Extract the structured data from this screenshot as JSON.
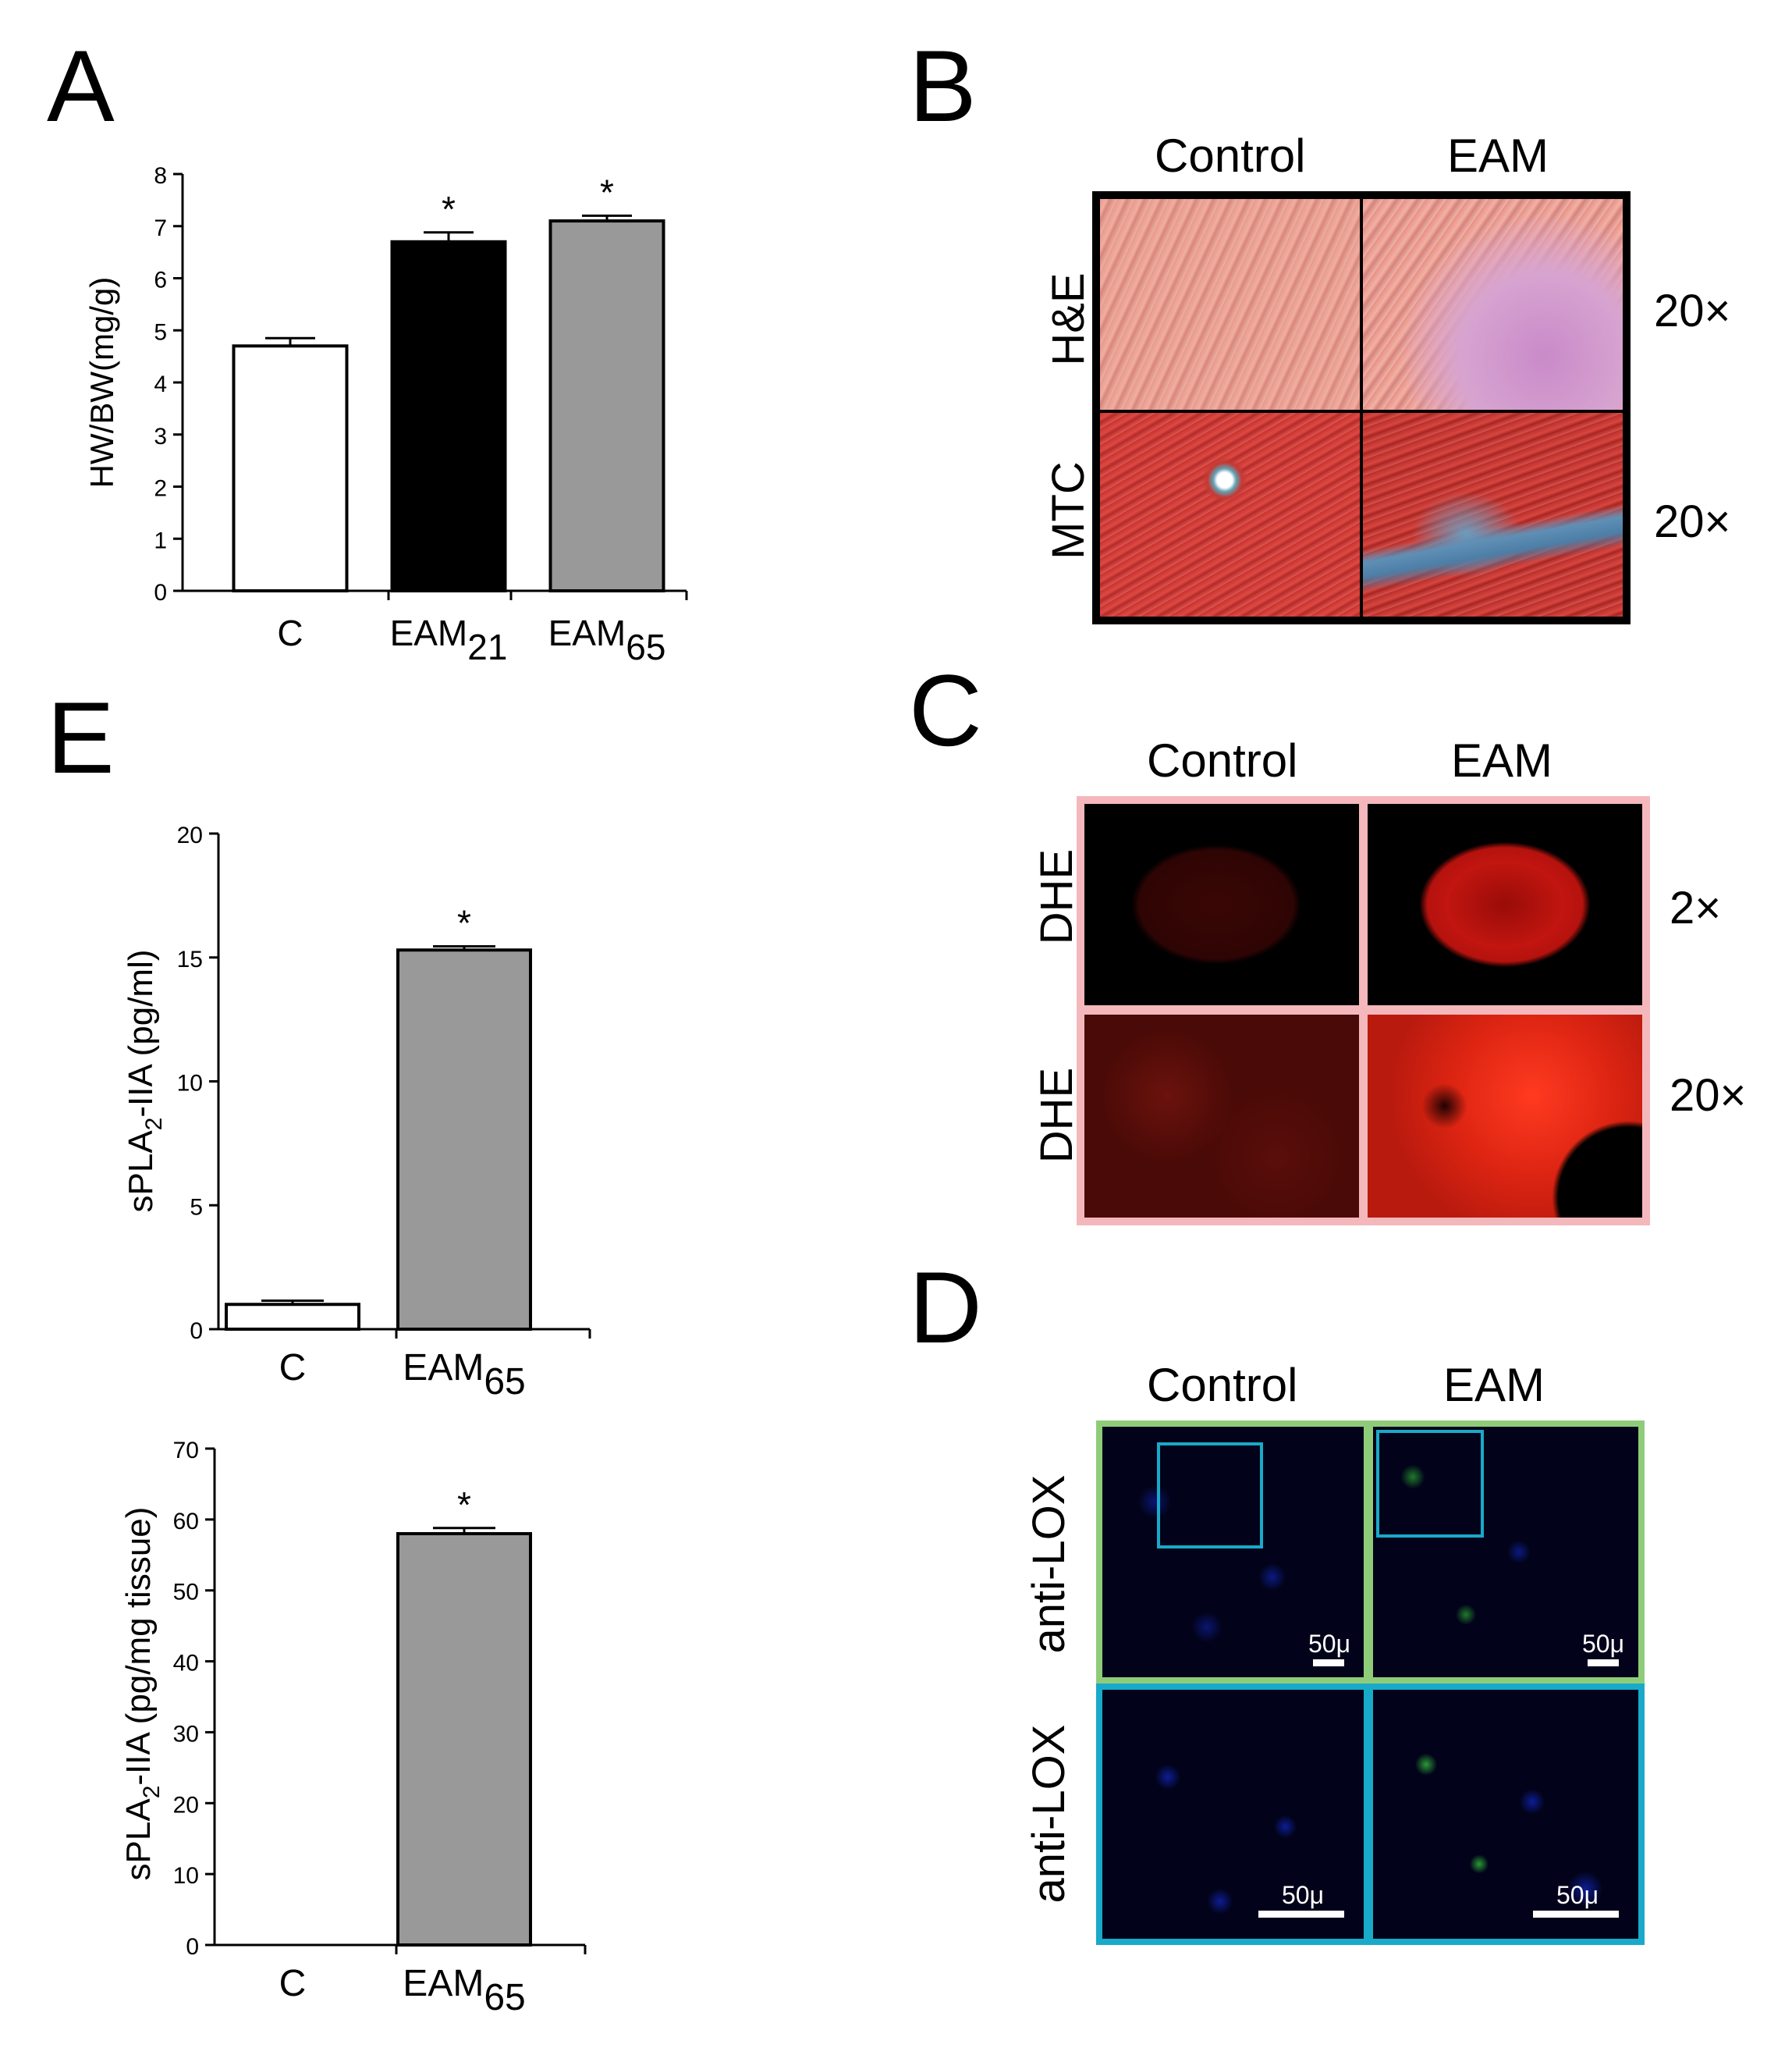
{
  "panels": {
    "A": {
      "letter": "A",
      "chart_data": {
        "type": "bar",
        "categories": [
          "C",
          "EAM",
          "EAM"
        ],
        "category_subscripts": [
          "",
          "21",
          "65"
        ],
        "values": [
          4.7,
          6.7,
          7.1
        ],
        "errors": [
          0.15,
          0.18,
          0.1
        ],
        "significance": [
          "",
          "*",
          "*"
        ],
        "bar_colors": [
          "#ffffff",
          "#000000",
          "#999999"
        ],
        "ylabel": "HW/BW(mg/g)",
        "ylim": [
          0,
          8
        ],
        "yticks": [
          0,
          1,
          2,
          3,
          4,
          5,
          6,
          7,
          8
        ],
        "grid": false
      }
    },
    "B": {
      "letter": "B",
      "col_labels": [
        "Control",
        "EAM"
      ],
      "row_labels": [
        "H&E",
        "MTC"
      ],
      "magnifications": [
        "20×",
        "20×"
      ]
    },
    "C": {
      "letter": "C",
      "col_labels": [
        "Control",
        "EAM"
      ],
      "row_labels": [
        "DHE",
        "DHE"
      ],
      "magnifications": [
        "2×",
        "20×"
      ],
      "frame_color": "#f4b8bc"
    },
    "D": {
      "letter": "D",
      "col_labels": [
        "Control",
        "EAM"
      ],
      "row_labels": [
        "anti-LOX",
        "anti-LOX"
      ],
      "scale_label": "50μ",
      "frame_colors": [
        "#8fcc7a",
        "#19a9c9"
      ]
    },
    "E": {
      "letter": "E",
      "chart_data": [
        {
          "type": "bar",
          "categories": [
            "C",
            "EAM"
          ],
          "category_subscripts": [
            "",
            "65"
          ],
          "values": [
            1.0,
            15.3
          ],
          "errors": [
            0.15,
            0.15
          ],
          "significance": [
            "",
            "*"
          ],
          "bar_colors": [
            "#ffffff",
            "#999999"
          ],
          "ylabel_main": "sPLA",
          "ylabel_sub": "2",
          "ylabel_rest": "-IIA (pg/ml)",
          "ylim": [
            0,
            20
          ],
          "yticks": [
            0,
            5,
            10,
            15,
            20
          ],
          "grid": false
        },
        {
          "type": "bar",
          "categories": [
            "C",
            "EAM"
          ],
          "category_subscripts": [
            "",
            "65"
          ],
          "values": [
            0,
            58
          ],
          "errors": [
            0,
            0.8
          ],
          "significance": [
            "",
            "*"
          ],
          "bar_colors": [
            "#ffffff",
            "#999999"
          ],
          "ylabel_main": "sPLA",
          "ylabel_sub": "2",
          "ylabel_rest": "-IIA (pg/mg tissue)",
          "ylim": [
            0,
            70
          ],
          "yticks": [
            0,
            10,
            20,
            30,
            40,
            50,
            60,
            70
          ],
          "grid": false
        }
      ]
    }
  }
}
